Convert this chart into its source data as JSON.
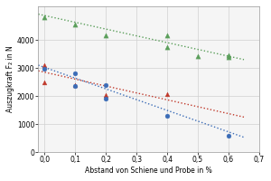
{
  "title": "",
  "xlabel": "Abstand von Schiene und Probe in %",
  "ylabel": "Auszugkraft F₂ in N",
  "xlim": [
    -0.02,
    0.7
  ],
  "ylim": [
    0,
    5200
  ],
  "xticks": [
    0.0,
    0.1,
    0.2,
    0.3,
    0.4,
    0.5,
    0.6,
    0.7
  ],
  "yticks": [
    0,
    1000,
    2000,
    3000,
    4000
  ],
  "xticklabels": [
    "0,0",
    "0,1",
    "0,2",
    "0,3",
    "0,4",
    "0,5",
    "0,6",
    "0,7"
  ],
  "yticklabels": [
    "0",
    "1000",
    "2000",
    "3000",
    "4000"
  ],
  "green_scatter_x": [
    0.0,
    0.1,
    0.2,
    0.4,
    0.4,
    0.5,
    0.6,
    0.6
  ],
  "green_scatter_y": [
    4820,
    4560,
    4160,
    4170,
    3750,
    3420,
    3470,
    3380
  ],
  "green_color": "#5a9e5a",
  "green_marker": "^",
  "red_scatter_x": [
    0.0,
    0.0,
    0.1,
    0.2,
    0.4
  ],
  "red_scatter_y": [
    3110,
    2480,
    2380,
    2050,
    2060
  ],
  "red_color": "#c0392b",
  "red_marker": "^",
  "blue_scatter_x": [
    0.0,
    0.1,
    0.1,
    0.2,
    0.2,
    0.4,
    0.6
  ],
  "blue_scatter_y": [
    2980,
    2820,
    2370,
    2400,
    1900,
    1310,
    590
  ],
  "blue_color": "#3b6cb7",
  "blue_marker": "o",
  "green_trendline_x": [
    -0.02,
    0.65
  ],
  "green_trendline_y": [
    4920,
    3300
  ],
  "red_trendline_x": [
    -0.02,
    0.65
  ],
  "red_trendline_y": [
    2900,
    1250
  ],
  "blue_trendline_x": [
    -0.02,
    0.65
  ],
  "blue_trendline_y": [
    3100,
    530
  ],
  "bg_color": "#ffffff",
  "plot_bg_color": "#f5f5f5",
  "grid_color": "#d0d0d0",
  "tick_fontsize": 5.5,
  "label_fontsize": 5.5
}
